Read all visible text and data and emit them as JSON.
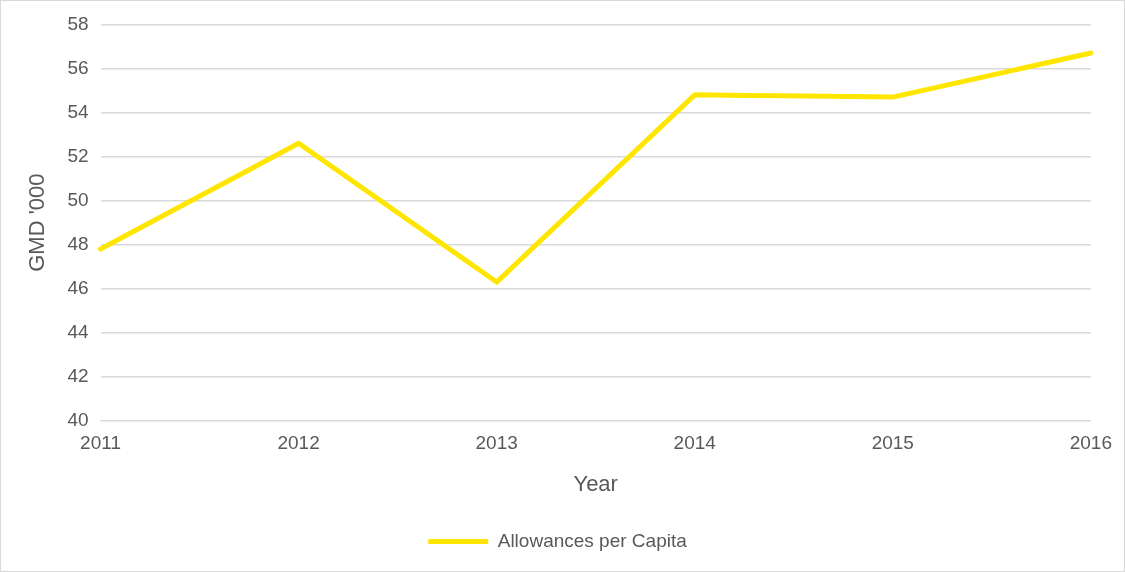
{
  "chart_data": {
    "type": "line",
    "xlabel": "Year",
    "ylabel": "GMD '000",
    "categories": [
      "2011",
      "2012",
      "2013",
      "2014",
      "2015",
      "2016"
    ],
    "series": [
      {
        "name": "Allowances per Capita",
        "color": "#ffe600",
        "values": [
          47.8,
          52.6,
          46.3,
          54.8,
          54.7,
          56.7
        ]
      }
    ],
    "ylim": [
      40,
      58
    ],
    "yticks": [
      40,
      42,
      44,
      46,
      48,
      50,
      52,
      54,
      56,
      58
    ],
    "grid": "y",
    "legend": "bottom",
    "marker": "none",
    "line_style": "solid"
  }
}
